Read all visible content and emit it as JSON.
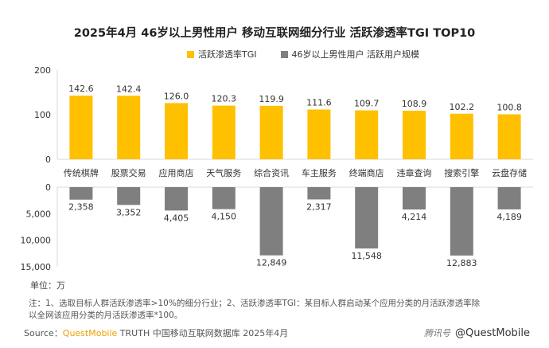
{
  "title": "2025年4月 46岁以上男性用户 移动互联网细分行业 活跃渗透率TGI TOP10",
  "legend": {
    "tgi": "活跃渗透率TGI",
    "users": "46岁以上男性用户 活跃用户规模"
  },
  "colors": {
    "tgi": "#ffc000",
    "users": "#7f7f7f",
    "axis": "#d9d9d9",
    "text": "#333333",
    "brand": "#f0a000"
  },
  "unit_label": "单位：万",
  "notes": {
    "line1": "注：1、选取目标人群活跃渗透率>10%的细分行业；2、活跃渗透率TGI：某目标人群启动某个应用分类的月活跃渗透率除",
    "line2": "以全网该应用分类的月活跃渗透率*100。"
  },
  "source": {
    "prefix": "Source：",
    "brand": "QuestMobile",
    "suffix": " TRUTH 中国移动互联网数据库 2025年4月"
  },
  "watermark": {
    "sub": "腾讯号",
    "main": "@QuestMobile"
  },
  "chart_data": {
    "type": "bar",
    "categories": [
      "传统棋牌",
      "股票交易",
      "应用商店",
      "天气服务",
      "综合资讯",
      "车主服务",
      "终端商店",
      "违章查询",
      "搜索引擎",
      "云盘存储"
    ],
    "series": [
      {
        "name": "活跃渗透率TGI",
        "values": [
          142.6,
          142.4,
          126.0,
          120.3,
          119.9,
          111.6,
          109.7,
          108.9,
          102.2,
          100.8
        ],
        "labels": [
          "142.6",
          "142.4",
          "126.0",
          "120.3",
          "119.9",
          "111.6",
          "109.7",
          "108.9",
          "102.2",
          "100.8"
        ]
      },
      {
        "name": "46岁以上男性用户 活跃用户规模",
        "values": [
          2358,
          3352,
          4405,
          4150,
          12849,
          2317,
          11548,
          4214,
          12883,
          4189
        ],
        "labels": [
          "2,358",
          "3,352",
          "4,405",
          "4,150",
          "12,849",
          "2,317",
          "11,548",
          "4,214",
          "12,883",
          "4,189"
        ]
      }
    ],
    "upper_axis": {
      "ylim": [
        0,
        200
      ],
      "ticks": [
        "0",
        "100",
        "200"
      ]
    },
    "lower_axis": {
      "ylim": [
        0,
        15000
      ],
      "ticks": [
        "0",
        "5,000",
        "10,000",
        "15,000"
      ],
      "inverted": true
    }
  }
}
